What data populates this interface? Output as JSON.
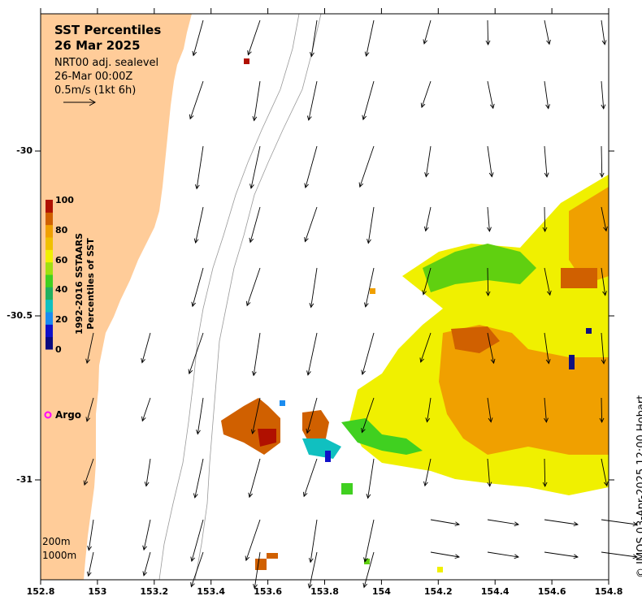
{
  "header": {
    "title_line1": "SST Percentiles",
    "title_line2": "26 Mar 2025",
    "product": "NRT00 adj. sealevel",
    "time": "26-Mar 00:00Z",
    "scale": "0.5m/s (1kt 6h)"
  },
  "colorbar": {
    "title_line1": "1992-2016 SSTAARS",
    "title_line2": "Percentiles of SST",
    "labels": [
      "100",
      "80",
      "60",
      "40",
      "20",
      "0"
    ],
    "colors": [
      "#0a0a80",
      "#1010c8",
      "#1a8cf0",
      "#10c0c0",
      "#20b060",
      "#40d020",
      "#a0e010",
      "#f0f000",
      "#f0c000",
      "#f0a000",
      "#d06000",
      "#b01000"
    ]
  },
  "legend": {
    "argo_label": "Argo",
    "argo_color": "#ff00ff",
    "contour_200": "200m",
    "contour_1000": "1000m"
  },
  "axes": {
    "x_ticks": [
      "152.8",
      "153",
      "153.2",
      "153.4",
      "153.6",
      "153.8",
      "154",
      "154.2",
      "154.4",
      "154.6",
      "154.8"
    ],
    "y_ticks": [
      "-30",
      "-30.5",
      "-31"
    ]
  },
  "credit": "© IMOS 03-Apr-2025 12:00 Hobart",
  "colors": {
    "land": "#ffcc99",
    "ocean": "#ffffff"
  }
}
